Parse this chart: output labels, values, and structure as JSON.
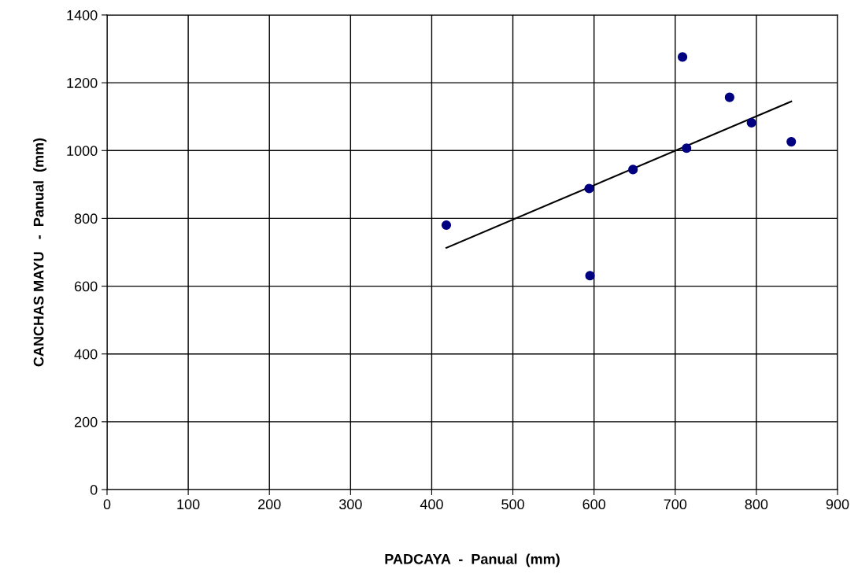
{
  "chart_data": {
    "type": "scatter",
    "xlabel": "PADCAYA  -  Panual  (mm)",
    "ylabel": "CANCHAS MAYU   -  Panual  (mm)",
    "series": [
      {
        "color": "#000080",
        "marker": "circle",
        "x": [
          418,
          594,
          595,
          648,
          709,
          714,
          767,
          794,
          843
        ],
        "values": [
          780,
          888,
          631,
          944,
          1276,
          1007,
          1157,
          1082,
          1026
        ]
      },
      {
        "type": "line",
        "marker": "none",
        "color": "#000000",
        "x": [
          418,
          843
        ],
        "values": [
          713,
          1145
        ]
      }
    ],
    "xlim": [
      0,
      900
    ],
    "xticks": [
      0,
      100,
      200,
      300,
      400,
      500,
      600,
      700,
      800,
      900
    ],
    "ylim": [
      0,
      1400
    ],
    "yticks": [
      0,
      200,
      400,
      600,
      800,
      1000,
      1200,
      1400
    ],
    "grid": true
  }
}
